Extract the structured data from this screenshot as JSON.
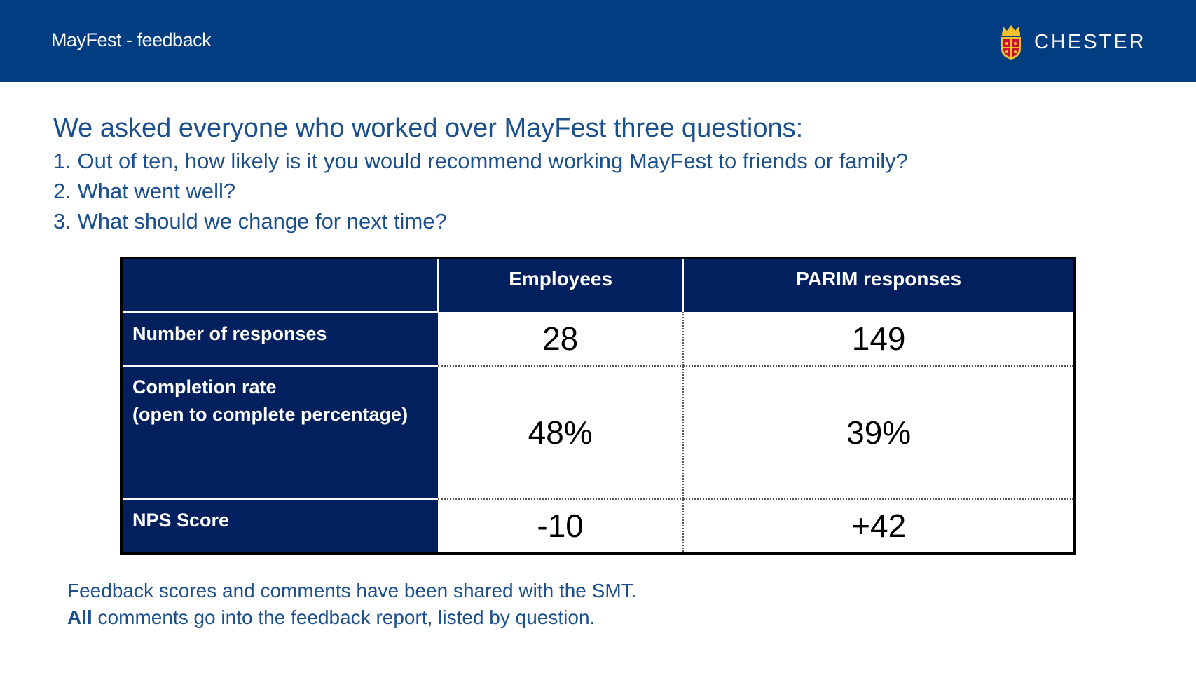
{
  "header": {
    "title": "MayFest - feedback",
    "logo_text": "CHESTER",
    "background": "#013d80"
  },
  "intro": {
    "heading": "We asked everyone who worked over MayFest three questions:",
    "questions": [
      "1. Out of ten, how likely is it you would recommend working MayFest to friends or family?",
      "2. What went well?",
      "3. What should we change for next time?"
    ]
  },
  "table": {
    "columns": [
      "",
      "Employees",
      "PARIM responses"
    ],
    "rows": [
      {
        "label_lines": [
          "Number of responses"
        ],
        "employees": "28",
        "parim": "149"
      },
      {
        "label_lines": [
          "Completion rate",
          "(open to complete percentage)"
        ],
        "employees": "48%",
        "parim": "39%"
      },
      {
        "label_lines": [
          "NPS Score"
        ],
        "employees": "-10",
        "parim": "+42"
      }
    ],
    "header_color": "#03205e"
  },
  "footer": {
    "line1": "Feedback scores and comments have been shared with the SMT.",
    "line2_bold": "All",
    "line2_rest": " comments go into the feedback report, listed by question."
  },
  "icons": {
    "logo": "crest-icon"
  }
}
